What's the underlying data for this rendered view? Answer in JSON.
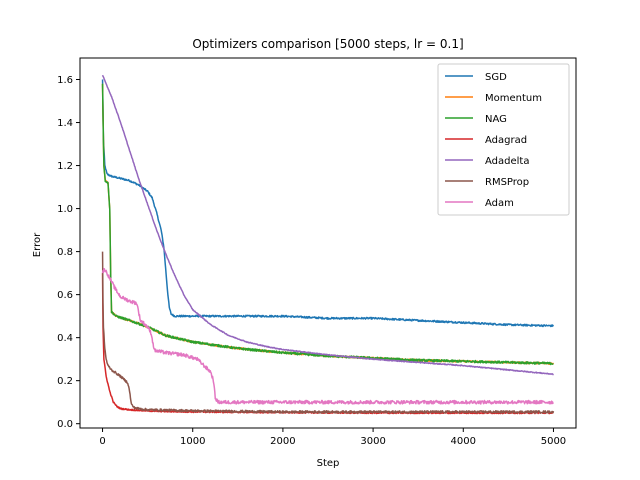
{
  "chart_data": {
    "type": "line",
    "title": "Optimizers comparison [5000 steps, lr = 0.1]",
    "xlabel": "Step",
    "ylabel": "Error",
    "xlim": [
      -250,
      5250
    ],
    "ylim": [
      -0.02,
      1.7
    ],
    "xticks": [
      0,
      1000,
      2000,
      3000,
      4000,
      5000
    ],
    "xtick_labels": [
      "0",
      "1000",
      "2000",
      "3000",
      "4000",
      "5000"
    ],
    "yticks": [
      0.0,
      0.2,
      0.4,
      0.6,
      0.8,
      1.0,
      1.2,
      1.4,
      1.6
    ],
    "ytick_labels": [
      "0.0",
      "0.2",
      "0.4",
      "0.6",
      "0.8",
      "1.0",
      "1.2",
      "1.4",
      "1.6"
    ],
    "grid": false,
    "legend_position": "top-right",
    "series": [
      {
        "name": "SGD",
        "color": "#1f77b4",
        "noise": 0.004,
        "points": [
          [
            0,
            1.6
          ],
          [
            10,
            1.32
          ],
          [
            25,
            1.2
          ],
          [
            50,
            1.16
          ],
          [
            100,
            1.15
          ],
          [
            200,
            1.14
          ],
          [
            300,
            1.13
          ],
          [
            400,
            1.11
          ],
          [
            500,
            1.08
          ],
          [
            550,
            1.05
          ],
          [
            600,
            0.98
          ],
          [
            650,
            0.9
          ],
          [
            680,
            0.82
          ],
          [
            700,
            0.72
          ],
          [
            720,
            0.62
          ],
          [
            740,
            0.54
          ],
          [
            760,
            0.51
          ],
          [
            800,
            0.5
          ],
          [
            1000,
            0.5
          ],
          [
            1500,
            0.5
          ],
          [
            2000,
            0.5
          ],
          [
            2500,
            0.49
          ],
          [
            3000,
            0.49
          ],
          [
            3500,
            0.48
          ],
          [
            4000,
            0.47
          ],
          [
            4500,
            0.46
          ],
          [
            5000,
            0.455
          ]
        ]
      },
      {
        "name": "Momentum",
        "color": "#ff7f0e",
        "noise": 0.004,
        "points": [
          [
            0,
            1.58
          ],
          [
            8,
            1.35
          ],
          [
            15,
            1.2
          ],
          [
            30,
            1.13
          ],
          [
            60,
            1.12
          ],
          [
            80,
            1.0
          ],
          [
            90,
            0.7
          ],
          [
            100,
            0.52
          ],
          [
            150,
            0.5
          ],
          [
            300,
            0.48
          ],
          [
            500,
            0.45
          ],
          [
            700,
            0.41
          ],
          [
            1000,
            0.38
          ],
          [
            1500,
            0.35
          ],
          [
            2000,
            0.33
          ],
          [
            2500,
            0.315
          ],
          [
            3000,
            0.305
          ],
          [
            3500,
            0.295
          ],
          [
            4000,
            0.29
          ],
          [
            4500,
            0.285
          ],
          [
            5000,
            0.28
          ]
        ]
      },
      {
        "name": "NAG",
        "color": "#2ca02c",
        "noise": 0.005,
        "points": [
          [
            0,
            1.58
          ],
          [
            8,
            1.35
          ],
          [
            15,
            1.2
          ],
          [
            30,
            1.13
          ],
          [
            60,
            1.12
          ],
          [
            80,
            1.0
          ],
          [
            90,
            0.7
          ],
          [
            100,
            0.52
          ],
          [
            150,
            0.5
          ],
          [
            300,
            0.48
          ],
          [
            500,
            0.45
          ],
          [
            700,
            0.41
          ],
          [
            1000,
            0.38
          ],
          [
            1500,
            0.35
          ],
          [
            2000,
            0.33
          ],
          [
            2500,
            0.315
          ],
          [
            3000,
            0.305
          ],
          [
            3500,
            0.295
          ],
          [
            4000,
            0.29
          ],
          [
            4500,
            0.285
          ],
          [
            5000,
            0.28
          ]
        ]
      },
      {
        "name": "Adagrad",
        "color": "#d62728",
        "noise": 0.003,
        "points": [
          [
            0,
            0.7
          ],
          [
            5,
            0.45
          ],
          [
            15,
            0.3
          ],
          [
            40,
            0.22
          ],
          [
            80,
            0.15
          ],
          [
            120,
            0.1
          ],
          [
            160,
            0.08
          ],
          [
            200,
            0.07
          ],
          [
            300,
            0.065
          ],
          [
            400,
            0.062
          ],
          [
            600,
            0.058
          ],
          [
            1000,
            0.055
          ],
          [
            2000,
            0.052
          ],
          [
            3000,
            0.05
          ],
          [
            4000,
            0.05
          ],
          [
            5000,
            0.05
          ]
        ]
      },
      {
        "name": "Adadelta",
        "color": "#9467bd",
        "noise": 0.002,
        "points": [
          [
            0,
            1.62
          ],
          [
            100,
            1.52
          ],
          [
            200,
            1.4
          ],
          [
            300,
            1.27
          ],
          [
            400,
            1.14
          ],
          [
            500,
            1.02
          ],
          [
            600,
            0.9
          ],
          [
            700,
            0.79
          ],
          [
            800,
            0.69
          ],
          [
            900,
            0.6
          ],
          [
            1000,
            0.53
          ],
          [
            1200,
            0.46
          ],
          [
            1400,
            0.41
          ],
          [
            1600,
            0.38
          ],
          [
            1800,
            0.36
          ],
          [
            2000,
            0.345
          ],
          [
            2500,
            0.32
          ],
          [
            3000,
            0.3
          ],
          [
            3500,
            0.285
          ],
          [
            4000,
            0.27
          ],
          [
            4500,
            0.25
          ],
          [
            5000,
            0.23
          ]
        ]
      },
      {
        "name": "RMSProp",
        "color": "#8c564b",
        "noise": 0.005,
        "points": [
          [
            0,
            0.8
          ],
          [
            3,
            0.6
          ],
          [
            10,
            0.45
          ],
          [
            25,
            0.35
          ],
          [
            40,
            0.3
          ],
          [
            60,
            0.27
          ],
          [
            100,
            0.25
          ],
          [
            200,
            0.22
          ],
          [
            280,
            0.19
          ],
          [
            300,
            0.15
          ],
          [
            320,
            0.09
          ],
          [
            350,
            0.075
          ],
          [
            400,
            0.07
          ],
          [
            500,
            0.065
          ],
          [
            1000,
            0.06
          ],
          [
            2000,
            0.055
          ],
          [
            3000,
            0.055
          ],
          [
            4000,
            0.055
          ],
          [
            5000,
            0.055
          ]
        ]
      },
      {
        "name": "Adam",
        "color": "#e377c2",
        "noise": 0.008,
        "points": [
          [
            0,
            0.7
          ],
          [
            20,
            0.72
          ],
          [
            50,
            0.7
          ],
          [
            100,
            0.66
          ],
          [
            150,
            0.62
          ],
          [
            200,
            0.59
          ],
          [
            300,
            0.57
          ],
          [
            380,
            0.56
          ],
          [
            400,
            0.52
          ],
          [
            420,
            0.48
          ],
          [
            450,
            0.47
          ],
          [
            500,
            0.45
          ],
          [
            540,
            0.42
          ],
          [
            560,
            0.37
          ],
          [
            580,
            0.34
          ],
          [
            700,
            0.33
          ],
          [
            900,
            0.32
          ],
          [
            1050,
            0.3
          ],
          [
            1100,
            0.28
          ],
          [
            1200,
            0.24
          ],
          [
            1230,
            0.2
          ],
          [
            1250,
            0.12
          ],
          [
            1280,
            0.1
          ],
          [
            2000,
            0.1
          ],
          [
            3000,
            0.1
          ],
          [
            4000,
            0.1
          ],
          [
            5000,
            0.1
          ]
        ]
      }
    ]
  }
}
